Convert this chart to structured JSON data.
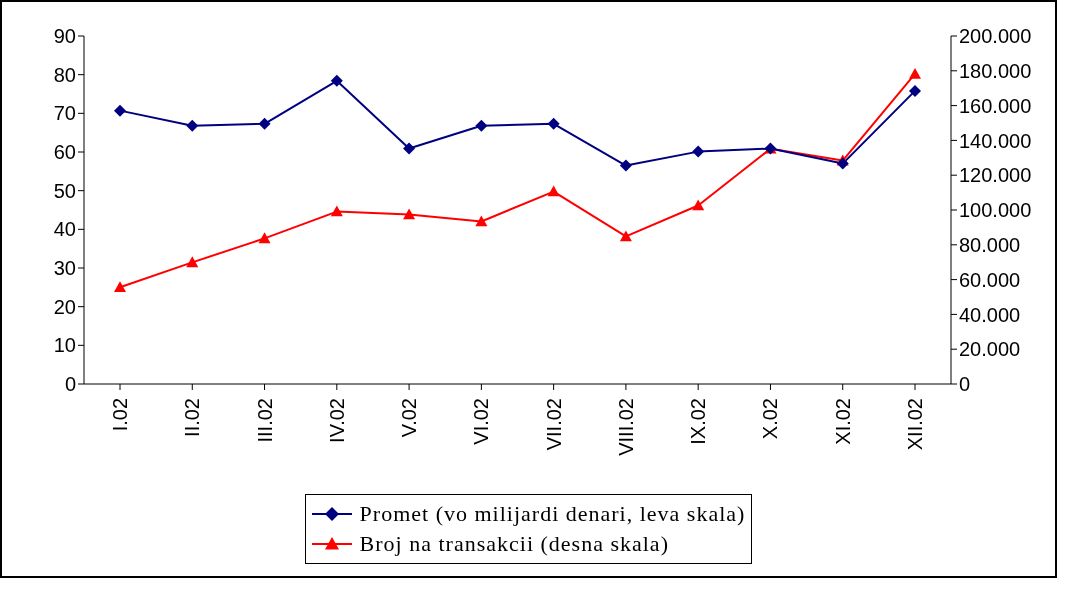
{
  "chart_data": {
    "type": "line",
    "categories": [
      "I.02",
      "II.02",
      "III.02",
      "IV.02",
      "V.02",
      "VI.02",
      "VII.02",
      "VIII.02",
      "IX.02",
      "X.02",
      "XI.02",
      "XII.02"
    ],
    "series": [
      {
        "name": "Promet (vo milijardi denari, leva skala)",
        "color": "#000080",
        "marker": "diamond",
        "values": [
          70.7,
          66.8,
          67.3,
          78.4,
          60.9,
          66.8,
          67.3,
          56.5,
          60.1,
          60.9,
          57,
          75.8
        ]
      },
      {
        "name": "Broj na transakcii (desna skala)",
        "color": "#ff0000",
        "marker": "triangle",
        "axis": "y2",
        "values": [
          55600,
          69900,
          83700,
          99100,
          97400,
          93400,
          110600,
          84800,
          102600,
          135200,
          128400,
          178200
        ]
      }
    ],
    "ylim": [
      0,
      90
    ],
    "yticks": [
      0,
      10,
      20,
      30,
      40,
      50,
      60,
      70,
      80,
      90
    ],
    "y2lim": [
      0,
      200000
    ],
    "y2ticks": [
      {
        "value": 0,
        "label": "0"
      },
      {
        "value": 20000,
        "label": "20.000"
      },
      {
        "value": 40000,
        "label": "40.000"
      },
      {
        "value": 60000,
        "label": "60.000"
      },
      {
        "value": 80000,
        "label": "80.000"
      },
      {
        "value": 100000,
        "label": "100.000"
      },
      {
        "value": 120000,
        "label": "120.000"
      },
      {
        "value": 140000,
        "label": "140.000"
      },
      {
        "value": 160000,
        "label": "160.000"
      },
      {
        "value": 180000,
        "label": "180.000"
      },
      {
        "value": 200000,
        "label": "200.000"
      }
    ],
    "grid": false,
    "legend": "bottom",
    "line_style": "solid"
  }
}
